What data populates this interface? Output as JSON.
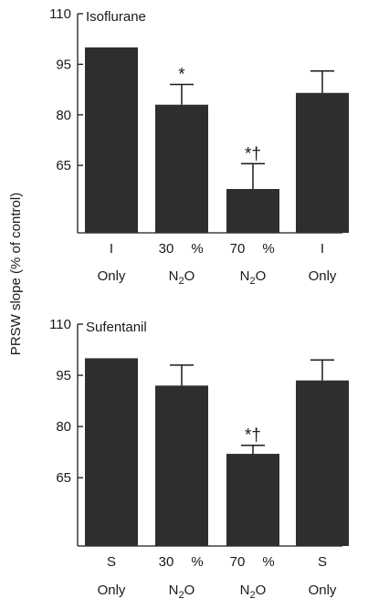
{
  "chart_data": {
    "type": "bar",
    "ylabel": "PRSW slope (% of control)",
    "panels": [
      {
        "title": "Isoflurane",
        "ylim": [
          45,
          110
        ],
        "yticks": [
          65,
          80,
          95,
          110
        ],
        "categories": [
          {
            "line1": "I",
            "pct": "",
            "line2": "Only"
          },
          {
            "line1": "30",
            "pct": "%",
            "line2": "N2O"
          },
          {
            "line1": "70",
            "pct": "%",
            "line2": "N2O"
          },
          {
            "line1": "I",
            "pct": "",
            "line2": "Only"
          }
        ],
        "values": [
          100,
          83,
          58,
          86.5
        ],
        "errors": [
          0,
          6,
          7.5,
          6.5
        ],
        "markers": [
          "",
          "*",
          "*†",
          ""
        ]
      },
      {
        "title": "Sufentanil",
        "ylim": [
          45,
          110
        ],
        "yticks": [
          65,
          80,
          95,
          110
        ],
        "categories": [
          {
            "line1": "S",
            "pct": "",
            "line2": "Only"
          },
          {
            "line1": "30",
            "pct": "%",
            "line2": "N2O"
          },
          {
            "line1": "70",
            "pct": "%",
            "line2": "N2O"
          },
          {
            "line1": "S",
            "pct": "",
            "line2": "Only"
          }
        ],
        "values": [
          100,
          92,
          72,
          93.5
        ],
        "errors": [
          0,
          6,
          2.5,
          6
        ],
        "markers": [
          "",
          "",
          "*†",
          ""
        ]
      }
    ],
    "colors": {
      "bar": "#2e2e2e",
      "axis": "#1a1a1a"
    }
  }
}
